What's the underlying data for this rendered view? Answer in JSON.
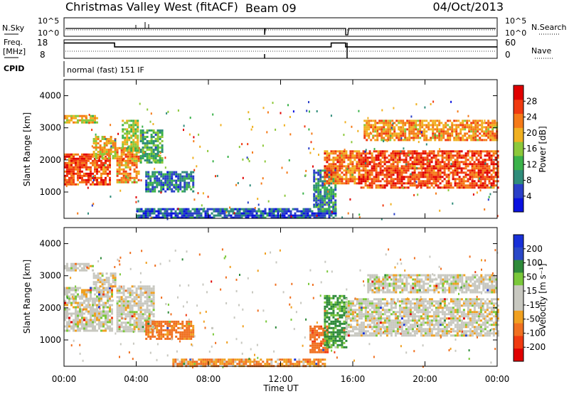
{
  "header": {
    "station": "Christmas Valley West (fitACF)",
    "beam": "Beam 09",
    "date": "04/Oct/2013"
  },
  "strip_labels": {
    "nsky": "N.Sky",
    "nsearch": "N.Search",
    "freq_line1": "Freq.",
    "freq_line2": "[MHz]",
    "nave": "Nave",
    "cpid": "CPID",
    "cpid_value": "normal (fast) 151 IF"
  },
  "strip_ticks": {
    "noise_top": "10^5",
    "noise_bottom": "10^0",
    "freq_top": "18",
    "freq_bottom": "8",
    "nave_top": "60",
    "nave_bottom": "0"
  },
  "x_axis": {
    "label": "Time UT",
    "ticks": [
      "00:00",
      "04:00",
      "08:00",
      "12:00",
      "16:00",
      "20:00",
      "00:00"
    ]
  },
  "y_axis": {
    "label": "Slant Range [km]",
    "ticks": [
      "1000",
      "2000",
      "3000",
      "4000"
    ]
  },
  "colors": {
    "power_scale": [
      "#0a12e0",
      "#2a3fc8",
      "#2f8c7a",
      "#3bb24a",
      "#8cc83a",
      "#f0b020",
      "#f57a18",
      "#f03a10",
      "#e00000"
    ],
    "velocity_scale": [
      "#1830d8",
      "#2a48c8",
      "#2e8a3a",
      "#7ac83a",
      "#c8c8c0",
      "#c8c8c0",
      "#f0a020",
      "#f07020",
      "#f03a10",
      "#e00000"
    ]
  },
  "chart_data": [
    {
      "type": "heatmap",
      "title": "",
      "quantity": "Power",
      "colorbar_label": "Power [dB]",
      "colorbar_ticks": [
        "4",
        "8",
        "12",
        "16",
        "20",
        "24",
        "28"
      ],
      "colorbar_range": [
        0,
        32
      ],
      "xlabel": "",
      "ylabel": "Slant Range [km]",
      "x_range_hours": [
        0,
        24
      ],
      "ylim": [
        180,
        4500
      ],
      "regions": [
        {
          "t0": 0.0,
          "t1": 2.6,
          "r0": 1250,
          "r1": 2200,
          "level": 26
        },
        {
          "t0": 0.0,
          "t1": 1.8,
          "r0": 3150,
          "r1": 3400,
          "level": 18
        },
        {
          "t0": 1.6,
          "t1": 2.9,
          "r0": 2050,
          "r1": 2750,
          "level": 20
        },
        {
          "t0": 2.9,
          "t1": 4.2,
          "r0": 1300,
          "r1": 2400,
          "level": 22
        },
        {
          "t0": 3.2,
          "t1": 4.1,
          "r0": 2300,
          "r1": 3250,
          "level": 16
        },
        {
          "t0": 4.2,
          "t1": 5.4,
          "r0": 1900,
          "r1": 2950,
          "level": 12
        },
        {
          "t0": 4.5,
          "t1": 7.2,
          "r0": 1000,
          "r1": 1650,
          "level": 8
        },
        {
          "t0": 4.0,
          "t1": 15.0,
          "r0": 200,
          "r1": 500,
          "level": 6
        },
        {
          "t0": 13.8,
          "t1": 15.0,
          "r0": 450,
          "r1": 1700,
          "level": 10
        },
        {
          "t0": 14.4,
          "t1": 16.3,
          "r0": 1250,
          "r1": 2300,
          "level": 24
        },
        {
          "t0": 16.3,
          "t1": 24.0,
          "r0": 1150,
          "r1": 2300,
          "level": 26
        },
        {
          "t0": 16.6,
          "t1": 24.0,
          "r0": 2600,
          "r1": 3250,
          "level": 22
        }
      ]
    },
    {
      "type": "heatmap",
      "title": "",
      "quantity": "Velocity",
      "colorbar_label": "Velocity [m s⁻¹]",
      "colorbar_ticks": [
        "200",
        "100",
        "50",
        "15",
        "-15",
        "-50",
        "-100",
        "-200"
      ],
      "xlabel": "Time UT",
      "ylabel": "Slant Range [km]",
      "x_range_hours": [
        0,
        24
      ],
      "ylim": [
        180,
        4500
      ],
      "regions": [
        {
          "t0": 0.0,
          "t1": 2.7,
          "r0": 1300,
          "r1": 2650,
          "velocity": 0
        },
        {
          "t0": 0.0,
          "t1": 1.6,
          "r0": 3150,
          "r1": 3400,
          "velocity": 0
        },
        {
          "t0": 1.6,
          "t1": 2.9,
          "r0": 2650,
          "r1": 3100,
          "velocity": 0
        },
        {
          "t0": 2.9,
          "t1": 5.0,
          "r0": 1300,
          "r1": 2700,
          "velocity": 0
        },
        {
          "t0": 4.5,
          "t1": 7.2,
          "r0": 1050,
          "r1": 1600,
          "velocity": -45
        },
        {
          "t0": 6.0,
          "t1": 14.5,
          "r0": 180,
          "r1": 420,
          "velocity": -30
        },
        {
          "t0": 13.6,
          "t1": 14.6,
          "r0": 600,
          "r1": 1450,
          "velocity": -60
        },
        {
          "t0": 14.4,
          "t1": 15.6,
          "r0": 800,
          "r1": 2400,
          "velocity": 40
        },
        {
          "t0": 15.6,
          "t1": 24.0,
          "r0": 1150,
          "r1": 2300,
          "velocity": 0
        },
        {
          "t0": 16.8,
          "t1": 24.0,
          "r0": 2500,
          "r1": 3050,
          "velocity": 0
        }
      ]
    },
    {
      "type": "line",
      "title": "",
      "quantity": "Frequency",
      "x_hours": [
        0,
        2.8,
        2.8,
        14.8,
        14.8,
        15.6,
        15.6,
        24
      ],
      "y_mhz": [
        16.3,
        16.3,
        14.2,
        14.2,
        16.3,
        16.3,
        14.2,
        14.2
      ],
      "ylim": [
        8,
        18
      ]
    }
  ]
}
